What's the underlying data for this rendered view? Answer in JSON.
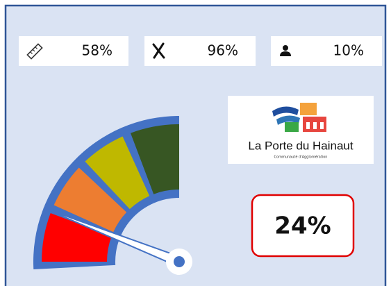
{
  "stats": [
    "58%",
    "96%",
    "10%"
  ],
  "logo": {
    "name": "La Porte du Hainaut",
    "subtitle": "Communauté d'Agglomération"
  },
  "gauge": {
    "value": 24,
    "label": "24%",
    "range": [
      0,
      100
    ]
  }
}
